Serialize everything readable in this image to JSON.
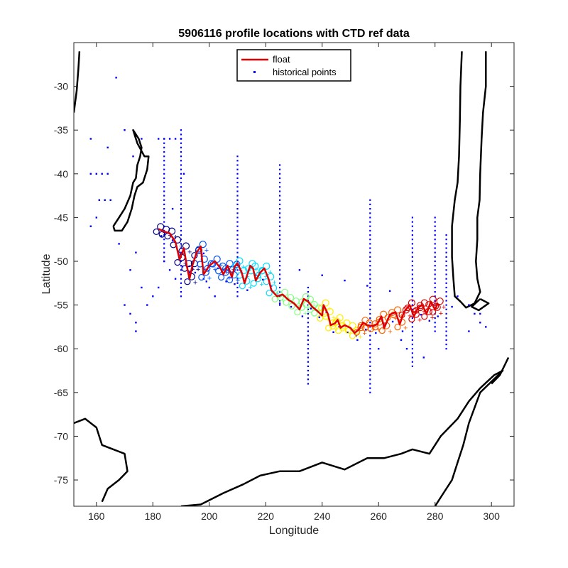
{
  "figure": {
    "title": "5906116 profile locations with CTD ref data",
    "xlabel": "Longitude",
    "ylabel": "Latitude"
  },
  "colors": {
    "float": "#e00000",
    "historical": "#0000ff",
    "coast": "#000000",
    "profile_colormap": [
      "#00008f",
      "#0050ff",
      "#00dfff",
      "#7fff7f",
      "#ffef00",
      "#ff6000",
      "#dd0000"
    ]
  },
  "legend": {
    "placement": "top-center",
    "items": [
      {
        "label": "float",
        "style": "line",
        "color": "#e00000"
      },
      {
        "label": "historical points",
        "style": "dots",
        "color": "#0000ff"
      }
    ]
  },
  "chart_data": {
    "type": "scatter",
    "title": "5906116 profile locations with CTD ref data",
    "xlabel": "Longitude",
    "ylabel": "Latitude",
    "xlim": [
      152,
      308
    ],
    "ylim": [
      -78,
      -25
    ],
    "grid": false,
    "xticks": [
      160,
      180,
      200,
      220,
      240,
      260,
      280,
      300
    ],
    "yticks": [
      -30,
      -35,
      -40,
      -45,
      -50,
      -55,
      -60,
      -65,
      -70,
      -75
    ],
    "series": [
      {
        "name": "float",
        "type": "line",
        "points": [
          [
            182,
            -46.3
          ],
          [
            184,
            -46.6
          ],
          [
            186,
            -46.8
          ],
          [
            188,
            -47.8
          ],
          [
            189.5,
            -49.8
          ],
          [
            191,
            -48.5
          ],
          [
            192,
            -50.5
          ],
          [
            193,
            -52
          ],
          [
            194,
            -50.5
          ],
          [
            195.5,
            -49
          ],
          [
            197,
            -48.3
          ],
          [
            197.5,
            -50
          ],
          [
            198,
            -51.5
          ],
          [
            200,
            -50.5
          ],
          [
            202,
            -50
          ],
          [
            204,
            -50.8
          ],
          [
            205,
            -51.5
          ],
          [
            206.5,
            -50.5
          ],
          [
            208,
            -51.8
          ],
          [
            209,
            -50.6
          ],
          [
            210,
            -50.2
          ],
          [
            211.5,
            -51.3
          ],
          [
            212.5,
            -52.5
          ],
          [
            214.5,
            -50.5
          ],
          [
            215.5,
            -50.8
          ],
          [
            216.5,
            -52.2
          ],
          [
            218,
            -51.3
          ],
          [
            219.5,
            -50.8
          ],
          [
            221,
            -52
          ],
          [
            222,
            -53.3
          ],
          [
            224,
            -54
          ],
          [
            226,
            -53.8
          ],
          [
            228,
            -54.4
          ],
          [
            230,
            -54.8
          ],
          [
            232,
            -55.5
          ],
          [
            233.5,
            -54.3
          ],
          [
            235,
            -54.6
          ],
          [
            236.5,
            -55.2
          ],
          [
            238,
            -55.6
          ],
          [
            240,
            -56.2
          ],
          [
            240.5,
            -55
          ],
          [
            242,
            -56
          ],
          [
            243,
            -57.3
          ],
          [
            244.5,
            -57.1
          ],
          [
            245.5,
            -56.7
          ],
          [
            246.5,
            -57.6
          ],
          [
            248,
            -57.3
          ],
          [
            250,
            -57.6
          ],
          [
            251.5,
            -58.2
          ],
          [
            253,
            -57.8
          ],
          [
            254.5,
            -57
          ],
          [
            256,
            -57.3
          ],
          [
            258,
            -57.4
          ],
          [
            259.5,
            -57.2
          ],
          [
            261,
            -56.3
          ],
          [
            262,
            -57.6
          ],
          [
            264,
            -56.1
          ],
          [
            266,
            -55.8
          ],
          [
            267.5,
            -57.2
          ],
          [
            269,
            -55.8
          ],
          [
            271,
            -55
          ],
          [
            272.5,
            -56.3
          ],
          [
            274,
            -55.3
          ],
          [
            275.5,
            -55
          ],
          [
            277,
            -56
          ],
          [
            278.5,
            -54.6
          ],
          [
            280,
            -55.5
          ],
          [
            281,
            -54.8
          ]
        ]
      },
      {
        "name": "historical points",
        "type": "scatter",
        "points": [
          [
            158,
            -40
          ],
          [
            160,
            -40
          ],
          [
            162,
            -40
          ],
          [
            164,
            -40
          ],
          [
            161,
            -43
          ],
          [
            163,
            -43
          ],
          [
            165,
            -43
          ],
          [
            158,
            -46
          ],
          [
            160,
            -45
          ],
          [
            168,
            -48
          ],
          [
            172,
            -51
          ],
          [
            174,
            -49
          ],
          [
            176,
            -53
          ],
          [
            170,
            -55
          ],
          [
            172,
            -56
          ],
          [
            174,
            -57
          ],
          [
            174,
            -58
          ],
          [
            184,
            -50
          ],
          [
            186,
            -51
          ],
          [
            188,
            -52
          ],
          [
            182,
            -53
          ],
          [
            180,
            -54
          ],
          [
            178,
            -55
          ],
          [
            167,
            -29
          ],
          [
            158,
            -36
          ],
          [
            164,
            -37
          ],
          [
            170,
            -35
          ],
          [
            173,
            -38
          ],
          [
            176,
            -36
          ],
          [
            182,
            -36
          ],
          [
            184,
            -36
          ],
          [
            186,
            -36
          ],
          [
            188,
            -36
          ],
          [
            190,
            -36
          ],
          [
            191,
            -40
          ],
          [
            187,
            -44
          ],
          [
            198,
            -52
          ],
          [
            200,
            -53
          ],
          [
            202,
            -54
          ],
          [
            232,
            -51
          ],
          [
            240,
            -51.6
          ],
          [
            248,
            -52.2
          ],
          [
            256,
            -52.8
          ],
          [
            264,
            -53.4
          ],
          [
            272,
            -54
          ],
          [
            280,
            -54.6
          ],
          [
            286,
            -55.2
          ],
          [
            288,
            -54
          ],
          [
            292,
            -55
          ],
          [
            294,
            -56
          ],
          [
            296,
            -57
          ],
          [
            298,
            -57.5
          ],
          [
            296,
            -56
          ],
          [
            292,
            -58
          ],
          [
            268,
            -59
          ],
          [
            270,
            -60
          ],
          [
            276,
            -61
          ],
          [
            260,
            -60
          ],
          [
            246,
            -57.5
          ],
          [
            252,
            -58.5
          ]
        ]
      }
    ],
    "historical_columns": [
      {
        "lon": 190,
        "lat_top": -35,
        "lat_bottom": -54
      },
      {
        "lon": 210,
        "lat_top": -38,
        "lat_bottom": -54
      },
      {
        "lon": 225,
        "lat_top": -39,
        "lat_bottom": -55
      },
      {
        "lon": 235,
        "lat_top": -53,
        "lat_bottom": -64
      },
      {
        "lon": 257,
        "lat_top": -43,
        "lat_bottom": -65
      },
      {
        "lon": 272,
        "lat_top": -45,
        "lat_bottom": -62
      },
      {
        "lon": 280,
        "lat_top": -45,
        "lat_bottom": -58
      },
      {
        "lon": 184,
        "lat_top": -36,
        "lat_bottom": -50
      },
      {
        "lon": 284,
        "lat_top": -47,
        "lat_bottom": -60
      }
    ]
  }
}
